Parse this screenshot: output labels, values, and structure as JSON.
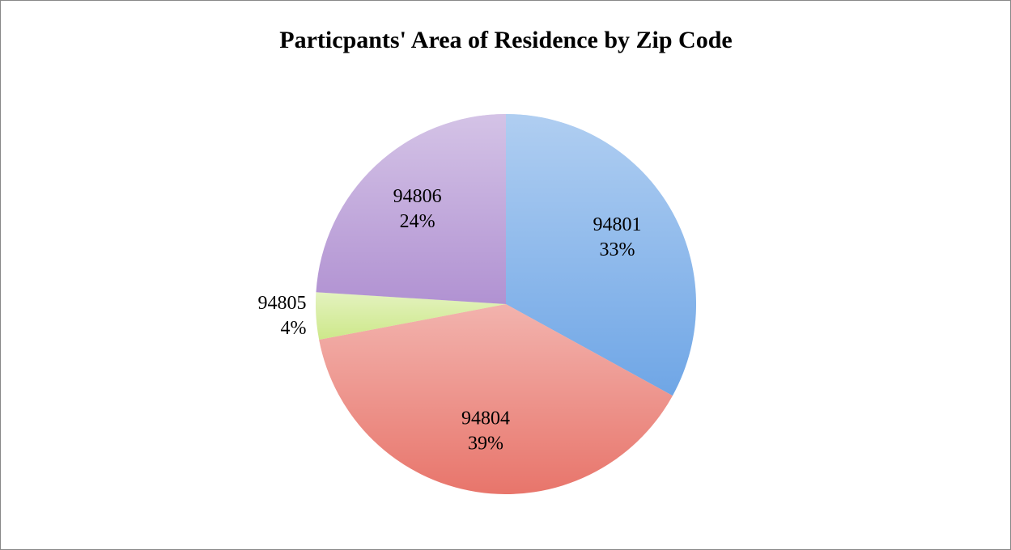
{
  "chart_data": {
    "type": "pie",
    "title": "Particpants' Area of Residence by Zip Code",
    "categories": [
      "94801",
      "94804",
      "94805",
      "94806"
    ],
    "values": [
      33,
      39,
      4,
      24
    ],
    "value_labels": [
      "33%",
      "39%",
      "4%",
      "24%"
    ],
    "colors": [
      "#6fa6e6",
      "#e8756b",
      "#cde88a",
      "#b192d2"
    ]
  }
}
